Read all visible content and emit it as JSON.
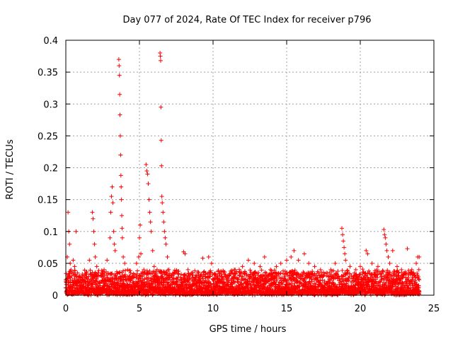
{
  "chart_data": {
    "type": "scatter",
    "title": "Day 077 of 2024, Rate Of TEC Index for receiver p796",
    "xlabel": "GPS time / hours",
    "ylabel": "ROTI / TECUs",
    "xlim": [
      0,
      25
    ],
    "ylim": [
      0,
      0.4
    ],
    "xticks": [
      0,
      5,
      10,
      15,
      20,
      25
    ],
    "yticks": [
      0,
      0.05,
      0.1,
      0.15,
      0.2,
      0.25,
      0.3,
      0.35,
      0.4
    ],
    "xtick_labels": [
      "0",
      "5",
      "10",
      "15",
      "20",
      "25"
    ],
    "ytick_labels": [
      "0",
      "0.05",
      "0.1",
      "0.15",
      "0.2",
      "0.25",
      "0.3",
      "0.35",
      "0.4"
    ],
    "grid": true,
    "marker": "+",
    "color": "#ff0000",
    "series": [
      {
        "name": "ROTI",
        "points": [
          [
            0.05,
            0.02
          ],
          [
            0.1,
            0.06
          ],
          [
            0.15,
            0.13
          ],
          [
            0.2,
            0.1
          ],
          [
            0.25,
            0.08
          ],
          [
            0.3,
            0.05
          ],
          [
            0.35,
            0.04
          ],
          [
            0.4,
            0.03
          ],
          [
            0.5,
            0.055
          ],
          [
            0.6,
            0.045
          ],
          [
            0.7,
            0.1
          ],
          [
            0.8,
            0.035
          ],
          [
            0.9,
            0.03
          ],
          [
            1.0,
            0.02
          ],
          [
            1.1,
            0.025
          ],
          [
            1.3,
            0.02
          ],
          [
            1.5,
            0.018
          ],
          [
            1.6,
            0.055
          ],
          [
            1.8,
            0.13
          ],
          [
            1.85,
            0.12
          ],
          [
            1.9,
            0.1
          ],
          [
            1.95,
            0.08
          ],
          [
            2.0,
            0.06
          ],
          [
            2.1,
            0.045
          ],
          [
            2.2,
            0.035
          ],
          [
            2.4,
            0.03
          ],
          [
            2.6,
            0.04
          ],
          [
            2.8,
            0.055
          ],
          [
            3.0,
            0.09
          ],
          [
            3.05,
            0.13
          ],
          [
            3.1,
            0.155
          ],
          [
            3.15,
            0.17
          ],
          [
            3.2,
            0.145
          ],
          [
            3.25,
            0.1
          ],
          [
            3.3,
            0.08
          ],
          [
            3.35,
            0.07
          ],
          [
            3.6,
            0.37
          ],
          [
            3.62,
            0.36
          ],
          [
            3.64,
            0.345
          ],
          [
            3.66,
            0.315
          ],
          [
            3.68,
            0.283
          ],
          [
            3.7,
            0.25
          ],
          [
            3.72,
            0.22
          ],
          [
            3.74,
            0.188
          ],
          [
            3.76,
            0.17
          ],
          [
            3.78,
            0.15
          ],
          [
            3.8,
            0.125
          ],
          [
            3.82,
            0.105
          ],
          [
            3.84,
            0.09
          ],
          [
            3.9,
            0.06
          ],
          [
            4.0,
            0.05
          ],
          [
            4.2,
            0.04
          ],
          [
            4.4,
            0.035
          ],
          [
            4.6,
            0.03
          ],
          [
            4.8,
            0.05
          ],
          [
            4.95,
            0.06
          ],
          [
            5.0,
            0.09
          ],
          [
            5.05,
            0.11
          ],
          [
            5.1,
            0.065
          ],
          [
            5.3,
            0.04
          ],
          [
            5.45,
            0.205
          ],
          [
            5.5,
            0.195
          ],
          [
            5.55,
            0.19
          ],
          [
            5.6,
            0.175
          ],
          [
            5.65,
            0.15
          ],
          [
            5.7,
            0.13
          ],
          [
            5.75,
            0.115
          ],
          [
            5.8,
            0.1
          ],
          [
            5.9,
            0.07
          ],
          [
            6.0,
            0.045
          ],
          [
            6.1,
            0.035
          ],
          [
            6.2,
            0.04
          ],
          [
            6.4,
            0.38
          ],
          [
            6.42,
            0.375
          ],
          [
            6.44,
            0.368
          ],
          [
            6.46,
            0.295
          ],
          [
            6.48,
            0.243
          ],
          [
            6.5,
            0.203
          ],
          [
            6.52,
            0.155
          ],
          [
            6.55,
            0.145
          ],
          [
            6.6,
            0.13
          ],
          [
            6.65,
            0.115
          ],
          [
            6.7,
            0.1
          ],
          [
            6.75,
            0.09
          ],
          [
            6.8,
            0.08
          ],
          [
            6.9,
            0.06
          ],
          [
            7.0,
            0.04
          ],
          [
            7.2,
            0.03
          ],
          [
            7.5,
            0.02
          ],
          [
            7.8,
            0.025
          ],
          [
            8.0,
            0.068
          ],
          [
            8.1,
            0.065
          ],
          [
            8.3,
            0.04
          ],
          [
            8.6,
            0.035
          ],
          [
            9.0,
            0.03
          ],
          [
            9.3,
            0.058
          ],
          [
            9.5,
            0.035
          ],
          [
            9.7,
            0.06
          ],
          [
            9.9,
            0.05
          ],
          [
            10.3,
            0.025
          ],
          [
            10.6,
            0.02
          ],
          [
            11.0,
            0.03
          ],
          [
            11.5,
            0.04
          ],
          [
            12.0,
            0.045
          ],
          [
            12.4,
            0.055
          ],
          [
            12.8,
            0.05
          ],
          [
            13.2,
            0.045
          ],
          [
            13.5,
            0.06
          ],
          [
            13.9,
            0.04
          ],
          [
            14.3,
            0.045
          ],
          [
            14.6,
            0.05
          ],
          [
            15.0,
            0.055
          ],
          [
            15.3,
            0.06
          ],
          [
            15.5,
            0.07
          ],
          [
            15.8,
            0.055
          ],
          [
            16.2,
            0.065
          ],
          [
            16.5,
            0.05
          ],
          [
            16.9,
            0.045
          ],
          [
            17.3,
            0.04
          ],
          [
            17.7,
            0.035
          ],
          [
            18.0,
            0.04
          ],
          [
            18.3,
            0.05
          ],
          [
            18.75,
            0.105
          ],
          [
            18.8,
            0.095
          ],
          [
            18.85,
            0.085
          ],
          [
            18.9,
            0.075
          ],
          [
            18.95,
            0.065
          ],
          [
            19.0,
            0.055
          ],
          [
            19.3,
            0.045
          ],
          [
            19.7,
            0.04
          ],
          [
            20.0,
            0.045
          ],
          [
            20.4,
            0.07
          ],
          [
            20.5,
            0.065
          ],
          [
            20.8,
            0.05
          ],
          [
            21.2,
            0.045
          ],
          [
            21.6,
            0.103
          ],
          [
            21.65,
            0.095
          ],
          [
            21.7,
            0.09
          ],
          [
            21.75,
            0.08
          ],
          [
            21.8,
            0.07
          ],
          [
            21.9,
            0.06
          ],
          [
            22.0,
            0.05
          ],
          [
            22.2,
            0.07
          ],
          [
            22.5,
            0.045
          ],
          [
            22.8,
            0.04
          ],
          [
            23.2,
            0.073
          ],
          [
            23.5,
            0.04
          ],
          [
            23.8,
            0.05
          ],
          [
            23.9,
            0.06
          ],
          [
            24.0,
            0.06
          ]
        ]
      }
    ]
  }
}
